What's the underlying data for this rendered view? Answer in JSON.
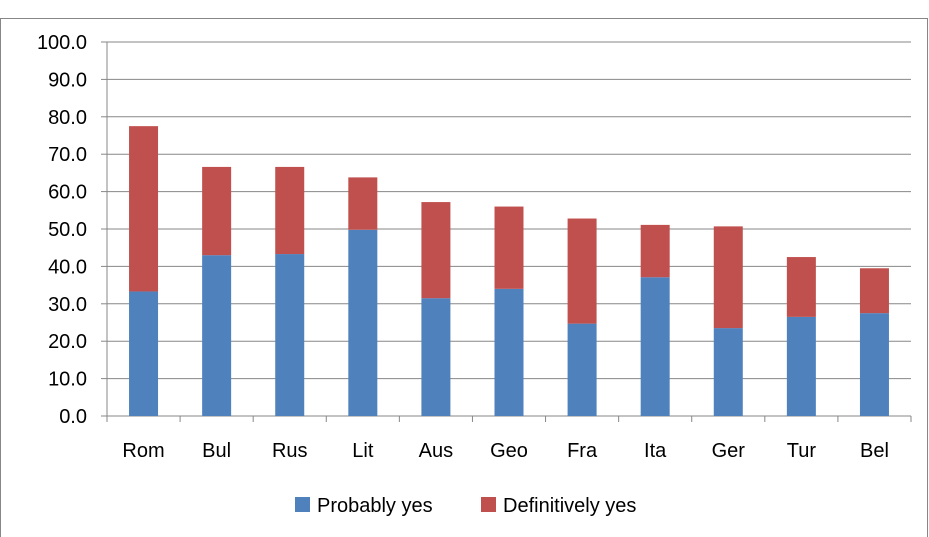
{
  "caption": "",
  "chart_data": {
    "type": "bar",
    "stacked": true,
    "title": "",
    "xlabel": "",
    "ylabel": "",
    "ylim": [
      0,
      100
    ],
    "yticks": [
      "0.0",
      "10.0",
      "20.0",
      "30.0",
      "40.0",
      "50.0",
      "60.0",
      "70.0",
      "80.0",
      "90.0",
      "100.0"
    ],
    "grid": true,
    "legend_position": "bottom",
    "categories": [
      "Rom",
      "Bul",
      "Rus",
      "Lit",
      "Aus",
      "Geo",
      "Fra",
      "Ita",
      "Ger",
      "Tur",
      "Bel"
    ],
    "series": [
      {
        "name": "Probably yes",
        "color": "#4f81bd",
        "values": [
          33.3,
          43.0,
          43.3,
          49.8,
          31.5,
          34.0,
          24.7,
          37.1,
          23.5,
          26.5,
          27.5
        ]
      },
      {
        "name": "Definitively yes",
        "color": "#c0504d",
        "values": [
          44.2,
          23.6,
          23.3,
          14.0,
          25.7,
          22.0,
          28.1,
          14.0,
          27.2,
          16.0,
          12.0
        ]
      }
    ]
  }
}
